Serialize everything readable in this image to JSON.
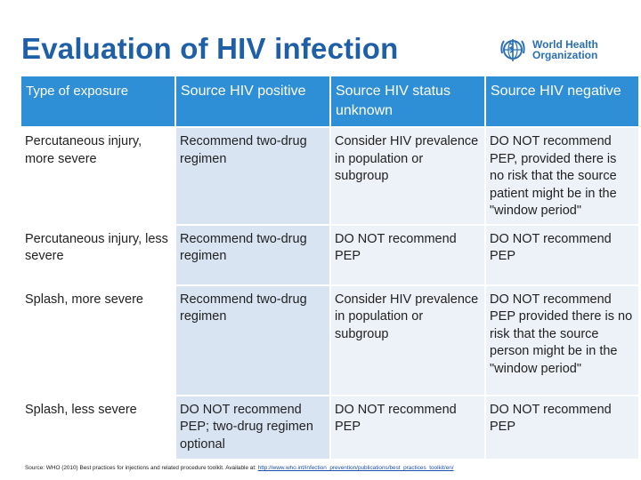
{
  "title": "Evaluation of HIV infection",
  "logo": {
    "line1": "World Health",
    "line2": "Organization",
    "icon": "who-emblem-icon"
  },
  "table": {
    "headers": [
      "Type of exposure",
      "Source HIV positive",
      "Source HIV status unknown",
      "Source HIV negative"
    ],
    "rows": [
      [
        "Percutaneous injury, more severe",
        "Recommend two-drug regimen",
        "Consider HIV prevalence in population or subgroup",
        "DO NOT recommend PEP, provided there is no risk that the source patient might be in the \"window period\""
      ],
      [
        "Percutaneous injury, less severe",
        "Recommend two-drug regimen",
        "DO NOT recommend PEP",
        "DO NOT recommend PEP"
      ],
      [
        "Splash, more severe",
        "Recommend two-drug regimen",
        "Consider HIV prevalence in population or subgroup",
        "DO NOT recommend PEP provided there is no risk that the source person might be in the \"window period\""
      ],
      [
        "Splash, less severe",
        "DO NOT recommend PEP; two-drug regimen optional",
        "DO NOT recommend PEP",
        "DO NOT recommend PEP"
      ]
    ]
  },
  "source": {
    "text": "Source: WHO (2010) Best practices for injections and related procedure toolkit. Available at:",
    "link": "http://www.who.int/infection_prevention/publications/best_practices_toolkit/en/"
  },
  "colors": {
    "title": "#1f5fa8",
    "header_bg": "#2f8fd6",
    "col1_bg": "#d9e4f3",
    "col23_bg": "#edf2f9"
  }
}
